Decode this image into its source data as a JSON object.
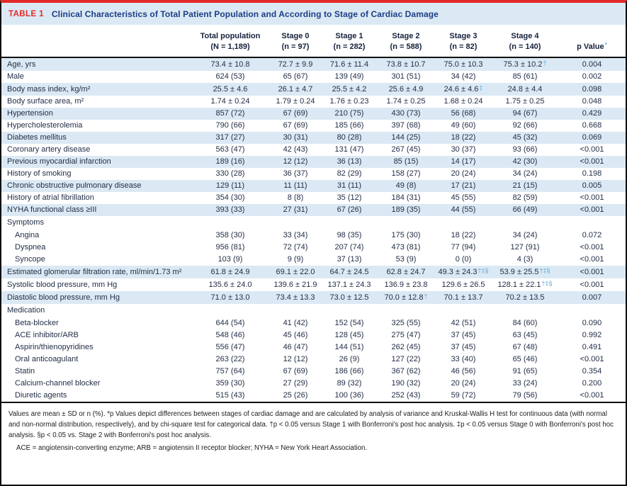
{
  "title": {
    "label": "TABLE 1",
    "text": "Clinical Characteristics of Total Patient Population and According to Stage of Cardiac Damage"
  },
  "columns": [
    {
      "top": "Total population",
      "bottom": "(N = 1,189)"
    },
    {
      "top": "Stage 0",
      "bottom": "(n = 97)"
    },
    {
      "top": "Stage 1",
      "bottom": "(n = 282)"
    },
    {
      "top": "Stage 2",
      "bottom": "(n = 588)"
    },
    {
      "top": "Stage 3",
      "bottom": "(n = 82)"
    },
    {
      "top": "Stage 4",
      "bottom": "(n = 140)"
    },
    {
      "top": "p Value",
      "sup": "*"
    }
  ],
  "rows": [
    {
      "label": "Age, yrs",
      "shaded": true,
      "cells": [
        "73.4 ± 10.8",
        "72.7 ± 9.9",
        "71.6 ± 11.4",
        "73.8 ± 10.7",
        "75.0 ± 10.3",
        {
          "t": "75.3 ± 10.2",
          "s": "†"
        },
        "0.004"
      ]
    },
    {
      "label": "Male",
      "shaded": false,
      "cells": [
        "624 (53)",
        "65 (67)",
        "139 (49)",
        "301 (51)",
        "34 (42)",
        "85 (61)",
        "0.002"
      ]
    },
    {
      "label": "Body mass index, kg/m²",
      "shaded": true,
      "cells": [
        "25.5 ± 4.6",
        "26.1 ± 4.7",
        "25.5 ± 4.2",
        "25.6 ± 4.9",
        {
          "t": "24.6 ± 4.6",
          "s": "‡"
        },
        "24.8 ± 4.4",
        "0.098"
      ]
    },
    {
      "label": "Body surface area, m²",
      "shaded": false,
      "cells": [
        "1.74 ± 0.24",
        "1.79 ± 0.24",
        "1.76 ± 0.23",
        "1.74 ± 0.25",
        "1.68 ± 0.24",
        "1.75 ± 0.25",
        "0.048"
      ]
    },
    {
      "label": "Hypertension",
      "shaded": true,
      "cells": [
        "857 (72)",
        "67 (69)",
        "210 (75)",
        "430 (73)",
        "56 (68)",
        "94 (67)",
        "0.429"
      ]
    },
    {
      "label": "Hypercholesterolemia",
      "shaded": false,
      "cells": [
        "790 (66)",
        "67 (69)",
        "185 (66)",
        "397 (68)",
        "49 (60)",
        "92 (66)",
        "0.668"
      ]
    },
    {
      "label": "Diabetes mellitus",
      "shaded": true,
      "cells": [
        "317 (27)",
        "30 (31)",
        "80 (28)",
        "144 (25)",
        "18 (22)",
        "45 (32)",
        "0.069"
      ]
    },
    {
      "label": "Coronary artery disease",
      "shaded": false,
      "cells": [
        "563 (47)",
        "42 (43)",
        "131 (47)",
        "267 (45)",
        "30 (37)",
        "93 (66)",
        "<0.001"
      ]
    },
    {
      "label": "Previous myocardial infarction",
      "shaded": true,
      "cells": [
        "189 (16)",
        "12 (12)",
        "36 (13)",
        "85 (15)",
        "14 (17)",
        "42 (30)",
        "<0.001"
      ]
    },
    {
      "label": "History of smoking",
      "shaded": false,
      "cells": [
        "330 (28)",
        "36 (37)",
        "82 (29)",
        "158 (27)",
        "20 (24)",
        "34 (24)",
        "0.198"
      ]
    },
    {
      "label": "Chronic obstructive pulmonary disease",
      "shaded": true,
      "cells": [
        "129 (11)",
        "11 (11)",
        "31 (11)",
        "49 (8)",
        "17 (21)",
        "21 (15)",
        "0.005"
      ]
    },
    {
      "label": "History of atrial fibrillation",
      "shaded": false,
      "cells": [
        "354 (30)",
        "8 (8)",
        "35 (12)",
        "184 (31)",
        "45 (55)",
        "82 (59)",
        "<0.001"
      ]
    },
    {
      "label": "NYHA functional class ≥III",
      "shaded": true,
      "cells": [
        "393 (33)",
        "27 (31)",
        "67 (26)",
        "189 (35)",
        "44 (55)",
        "66 (49)",
        "<0.001"
      ]
    },
    {
      "label": "Symptoms",
      "section": true,
      "shaded": false,
      "cells": [
        "",
        "",
        "",
        "",
        "",
        "",
        ""
      ]
    },
    {
      "label": "Angina",
      "indent": true,
      "shaded": false,
      "cells": [
        "358 (30)",
        "33 (34)",
        "98 (35)",
        "175 (30)",
        "18 (22)",
        "34 (24)",
        "0.072"
      ]
    },
    {
      "label": "Dyspnea",
      "indent": true,
      "shaded": false,
      "cells": [
        "956 (81)",
        "72 (74)",
        "207 (74)",
        "473 (81)",
        "77 (94)",
        "127 (91)",
        "<0.001"
      ]
    },
    {
      "label": "Syncope",
      "indent": true,
      "shaded": false,
      "cells": [
        "103 (9)",
        "9 (9)",
        "37 (13)",
        "53 (9)",
        "0 (0)",
        "4 (3)",
        "<0.001"
      ]
    },
    {
      "label": "Estimated glomerular filtration rate, ml/min/1.73 m²",
      "shaded": true,
      "cells": [
        "61.8 ± 24.9",
        "69.1 ± 22.0",
        "64.7 ± 24.5",
        "62.8 ± 24.7",
        {
          "t": "49.3 ± 24.3",
          "s": "†‡§"
        },
        {
          "t": "53.9 ± 25.5",
          "s": "†‡§"
        },
        "<0.001"
      ]
    },
    {
      "label": "Systolic blood pressure, mm Hg",
      "shaded": false,
      "cells": [
        "135.6 ± 24.0",
        "139.6 ± 21.9",
        "137.1 ± 24.3",
        "136.9 ± 23.8",
        "129.6 ± 26.5",
        {
          "t": "128.1 ± 22.1",
          "s": "†‡§"
        },
        "<0.001"
      ]
    },
    {
      "label": "Diastolic blood pressure, mm Hg",
      "shaded": true,
      "cells": [
        "71.0 ± 13.0",
        "73.4 ± 13.3",
        "73.0 ± 12.5",
        {
          "t": "70.0 ± 12.8",
          "s": "†"
        },
        "70.1 ± 13.7",
        "70.2 ± 13.5",
        "0.007"
      ]
    },
    {
      "label": "Medication",
      "section": true,
      "shaded": false,
      "cells": [
        "",
        "",
        "",
        "",
        "",
        "",
        ""
      ]
    },
    {
      "label": "Beta-blocker",
      "indent": true,
      "shaded": false,
      "cells": [
        "644 (54)",
        "41 (42)",
        "152 (54)",
        "325 (55)",
        "42 (51)",
        "84 (60)",
        "0.090"
      ]
    },
    {
      "label": "ACE inhibitor/ARB",
      "indent": true,
      "shaded": false,
      "cells": [
        "548 (46)",
        "45 (46)",
        "128 (45)",
        "275 (47)",
        "37 (45)",
        "63 (45)",
        "0.992"
      ]
    },
    {
      "label": "Aspirin/thienopyridines",
      "indent": true,
      "shaded": false,
      "cells": [
        "556 (47)",
        "46 (47)",
        "144 (51)",
        "262 (45)",
        "37 (45)",
        "67 (48)",
        "0.491"
      ]
    },
    {
      "label": "Oral anticoagulant",
      "indent": true,
      "shaded": false,
      "cells": [
        "263 (22)",
        "12 (12)",
        "26 (9)",
        "127 (22)",
        "33 (40)",
        "65 (46)",
        "<0.001"
      ]
    },
    {
      "label": "Statin",
      "indent": true,
      "shaded": false,
      "cells": [
        "757 (64)",
        "67 (69)",
        "186 (66)",
        "367 (62)",
        "46 (56)",
        "91 (65)",
        "0.354"
      ]
    },
    {
      "label": "Calcium-channel blocker",
      "indent": true,
      "shaded": false,
      "cells": [
        "359 (30)",
        "27 (29)",
        "89 (32)",
        "190 (32)",
        "20 (24)",
        "33 (24)",
        "0.200"
      ]
    },
    {
      "label": "Diuretic agents",
      "indent": true,
      "shaded": false,
      "cells": [
        "515 (43)",
        "25 (26)",
        "100 (36)",
        "252 (43)",
        "59 (72)",
        "79 (56)",
        "<0.001"
      ]
    }
  ],
  "footnotes": {
    "stats": "Values are mean ± SD or n (%). *p Values depict differences between stages of cardiac damage and are calculated by analysis of variance and Kruskal-Wallis H test for continuous data (with normal and non-normal distribution, respectively), and by chi-square test for categorical data. †p < 0.05 versus Stage 1 with Bonferroni's post hoc analysis. ‡p < 0.05 versus Stage 0 with Bonferroni's post hoc analysis. §p < 0.05 vs. Stage 2 with Bonferroni's post hoc analysis.",
    "abbreviations": "ACE = angiotensin-converting enzyme; ARB = angiotensin II receptor blocker; NYHA = New York Heart Association."
  },
  "colors": {
    "accent_red": "#e42a28",
    "title_navy": "#1c3e85",
    "band_blue": "#dbe9f4",
    "marker_blue": "#5ea9da",
    "body_text": "#222e47",
    "border_black": "#0f0f0f"
  }
}
